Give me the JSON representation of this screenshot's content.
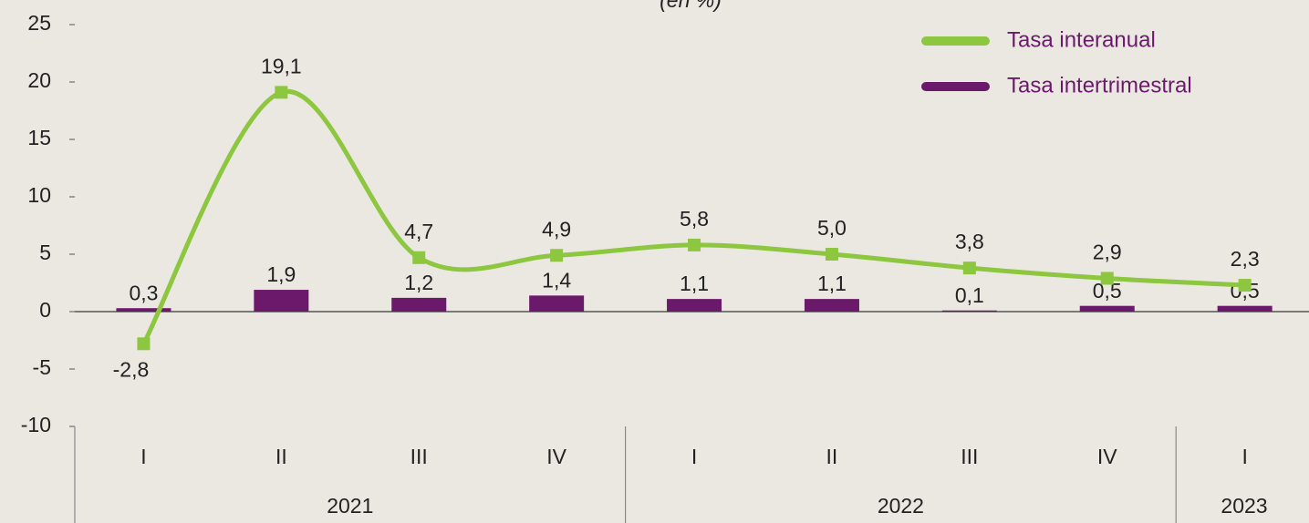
{
  "chart_data": {
    "type": "line-bar",
    "subtitle": "(en %)",
    "categories": [
      "I",
      "II",
      "III",
      "IV",
      "I",
      "II",
      "III",
      "IV",
      "I"
    ],
    "x_groups": [
      {
        "label": "2021",
        "count": 4
      },
      {
        "label": "2022",
        "count": 4
      },
      {
        "label": "2023",
        "count": 1
      }
    ],
    "series": [
      {
        "name": "Tasa interanual",
        "type": "line",
        "color": "#8dc63f",
        "values": [
          -2.8,
          19.1,
          4.7,
          4.9,
          5.8,
          5.0,
          3.8,
          2.9,
          2.3
        ],
        "value_labels": [
          "-2,8",
          "19,1",
          "4,7",
          "4,9",
          "5,8",
          "5,0",
          "3,8",
          "2,9",
          "2,3"
        ]
      },
      {
        "name": "Tasa intertrimestral",
        "type": "bar",
        "color": "#6b1a6b",
        "values": [
          0.3,
          1.9,
          1.2,
          1.4,
          1.1,
          1.1,
          0.1,
          0.5,
          0.5
        ],
        "value_labels": [
          "0,3",
          "1,9",
          "1,2",
          "1,4",
          "1,1",
          "1,1",
          "0,1",
          "0,5",
          "0,5"
        ]
      }
    ],
    "ylim": [
      -10,
      25
    ],
    "yticks": [
      -10,
      -5,
      0,
      5,
      10,
      15,
      20,
      25
    ],
    "grid": false,
    "legend": "top-right"
  }
}
